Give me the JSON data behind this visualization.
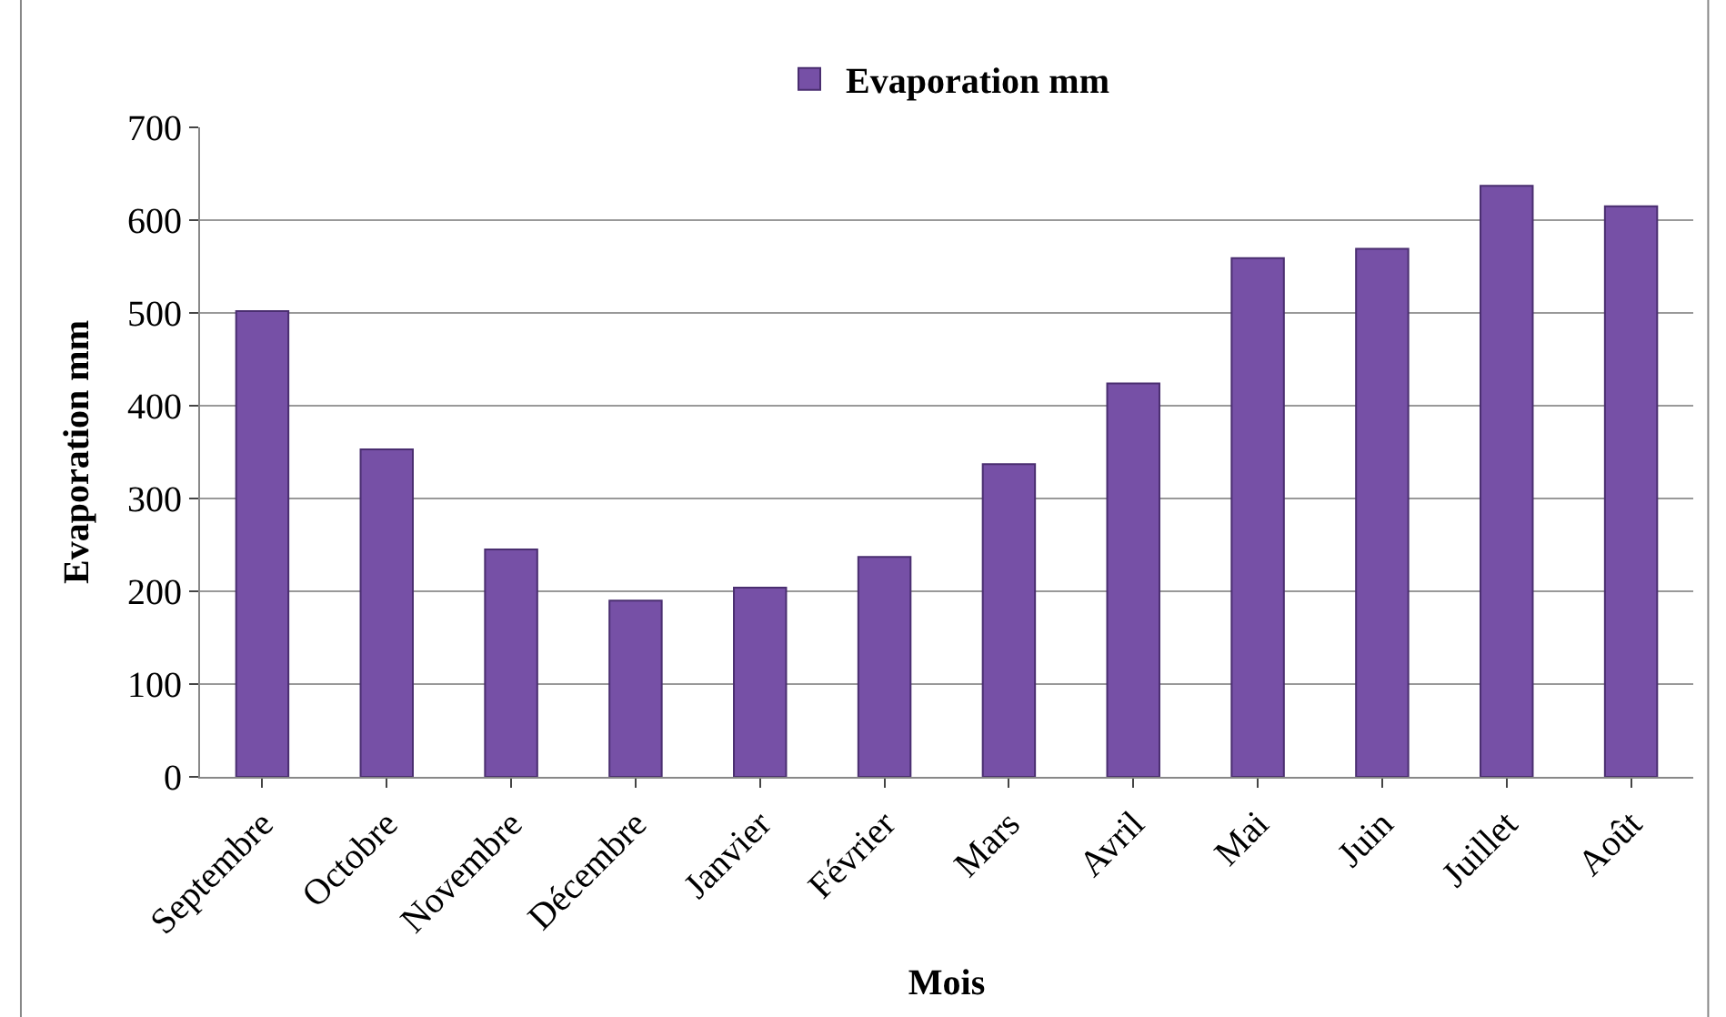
{
  "chart_data": {
    "type": "bar",
    "xlabel": "Mois",
    "ylabel": "Evaporation mm",
    "categories": [
      "Septembre",
      "Octobre",
      "Novembre",
      "Décembre",
      "Janvier",
      "Février",
      "Mars",
      "Avril",
      "Mai",
      "Juin",
      "Juillet",
      "Août"
    ],
    "series": [
      {
        "name": "Evaporation mm",
        "color": "#7650a6",
        "values": [
          502,
          353,
          245,
          190,
          204,
          237,
          337,
          424,
          559,
          569,
          637,
          615
        ]
      }
    ],
    "ylim": [
      0,
      700
    ],
    "yticks": [
      0,
      100,
      200,
      300,
      400,
      500,
      600,
      700
    ],
    "grid": "y",
    "legend": "top"
  }
}
